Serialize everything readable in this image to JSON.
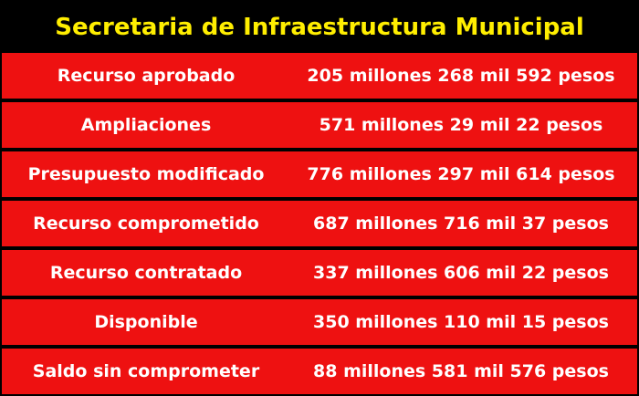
{
  "title": "Secretaria de Infraestructura Municipal",
  "rows": [
    {
      "label": "Recurso aprobado",
      "value": "205 millones 268 mil 592 pesos"
    },
    {
      "label": "Ampliaciones",
      "value": "571 millones 29 mil 22 pesos"
    },
    {
      "label": "Presupuesto modificado",
      "value": "776 millones 297 mil 614 pesos"
    },
    {
      "label": "Recurso comprometido",
      "value": "687 millones 716 mil 37 pesos"
    },
    {
      "label": "Recurso contratado",
      "value": "337 millones 606 mil 22 pesos"
    },
    {
      "label": "Disponible",
      "value": "350 millones 110 mil 15 pesos"
    },
    {
      "label": "Saldo sin comprometer",
      "value": "88 millones 581 mil 576 pesos"
    }
  ],
  "colors": {
    "background": "#000000",
    "title_text": "#ffee00",
    "row_background": "#ee1111",
    "row_text": "#ffffff"
  }
}
